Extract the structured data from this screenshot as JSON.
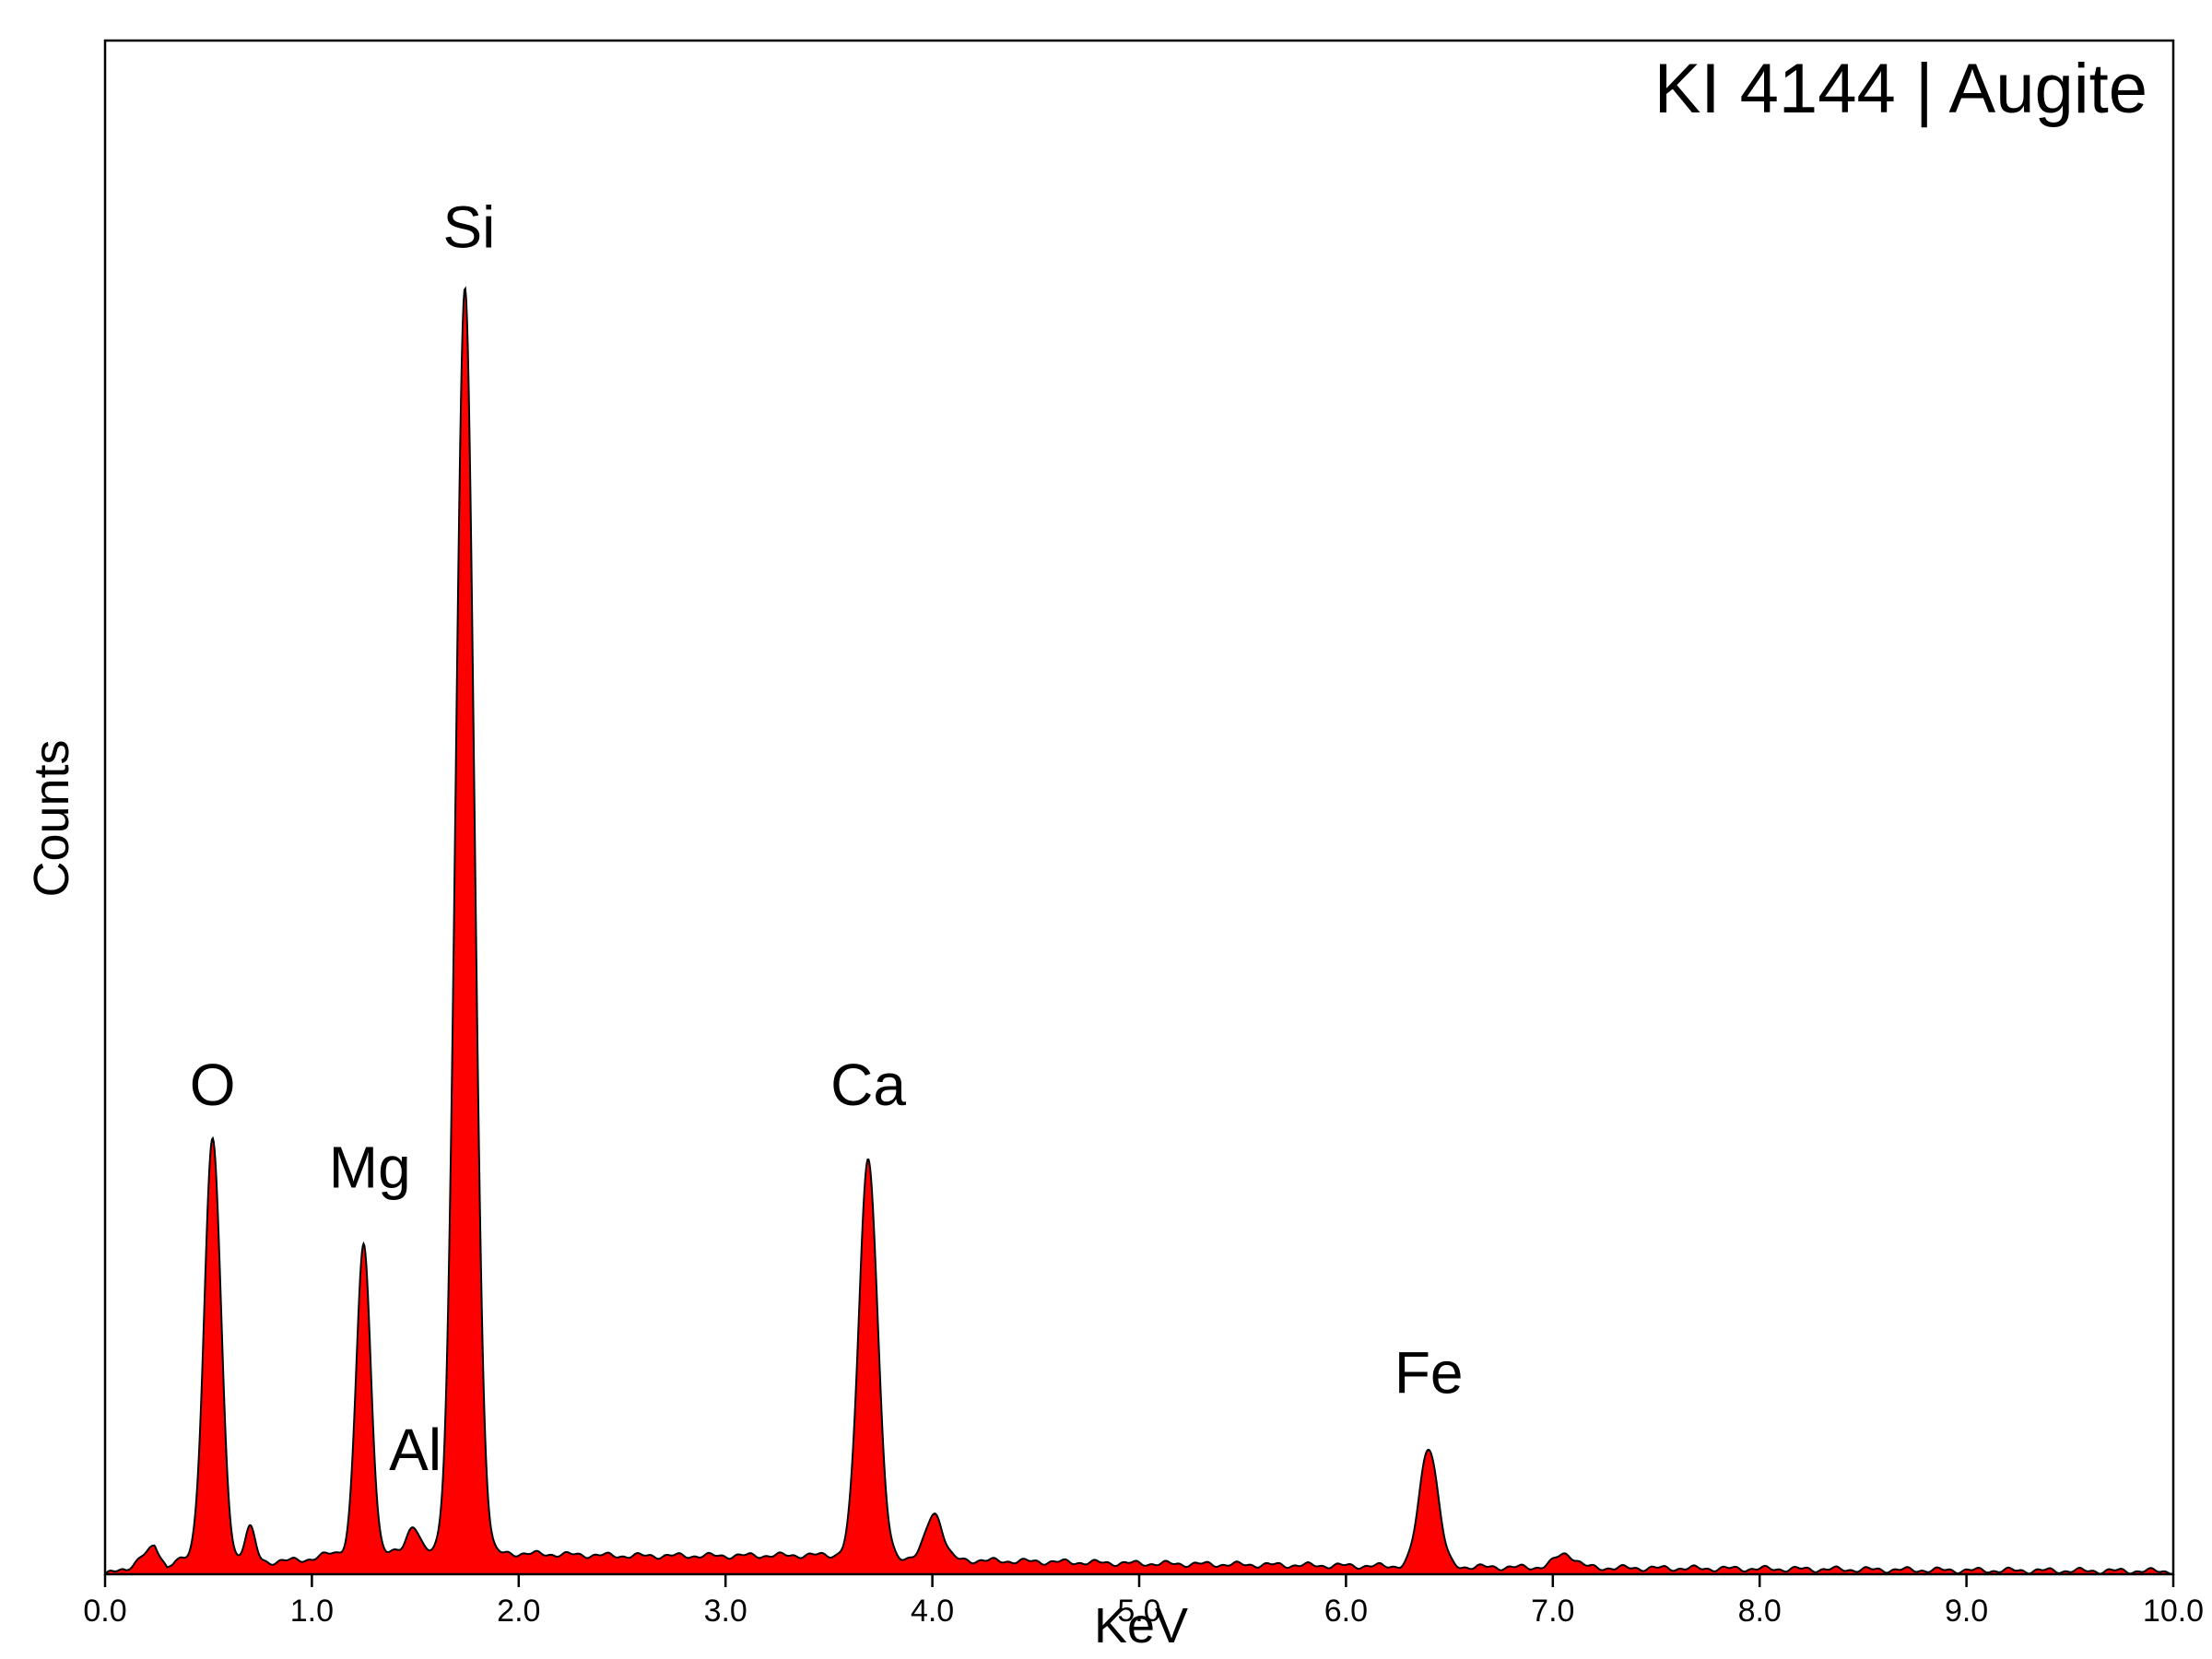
{
  "chart_data": {
    "type": "area",
    "title": "KI 4144 | Augite",
    "xlabel": "KeV",
    "ylabel": "Counts",
    "xlim": [
      0.0,
      10.0
    ],
    "ylim": [
      0,
      100
    ],
    "x_ticks": [
      "0.0",
      "1.0",
      "2.0",
      "3.0",
      "4.0",
      "5.0",
      "6.0",
      "7.0",
      "8.0",
      "9.0",
      "10.0"
    ],
    "y_ticks_shown": false,
    "grid": false,
    "legend": "none",
    "fill_color": "#ff0000",
    "line_color": "#000000",
    "background": [
      [
        0.0,
        0.0
      ],
      [
        0.1,
        0.3
      ],
      [
        0.18,
        1.2
      ],
      [
        0.24,
        1.8
      ],
      [
        0.3,
        0.5
      ],
      [
        0.34,
        0.9
      ],
      [
        0.6,
        0.9
      ],
      [
        0.8,
        0.8
      ],
      [
        1.0,
        1.0
      ],
      [
        1.1,
        1.4
      ],
      [
        1.5,
        1.4
      ],
      [
        2.0,
        1.35
      ],
      [
        2.5,
        1.2
      ],
      [
        3.0,
        1.2
      ],
      [
        3.5,
        1.25
      ],
      [
        4.2,
        0.9
      ],
      [
        5.0,
        0.7
      ],
      [
        6.0,
        0.55
      ],
      [
        6.8,
        0.45
      ],
      [
        8.0,
        0.35
      ],
      [
        9.0,
        0.25
      ],
      [
        10.0,
        0.2
      ]
    ],
    "peaks": [
      {
        "label": "O",
        "energy": 0.52,
        "height": 27.5,
        "width": 0.04,
        "label_x": 0.52,
        "label_y": 30.6
      },
      {
        "label": "",
        "energy": 0.7,
        "height": 2.2,
        "width": 0.025,
        "label_x": null,
        "label_y": null
      },
      {
        "label": "Mg",
        "energy": 1.25,
        "height": 20.0,
        "width": 0.035,
        "label_x": 1.28,
        "label_y": 25.2
      },
      {
        "label": "Al",
        "energy": 1.49,
        "height": 1.8,
        "width": 0.03,
        "label_x": 1.5,
        "label_y": 6.8
      },
      {
        "label": "Si",
        "energy": 1.74,
        "height": 82.3,
        "width": 0.045,
        "label_x": 1.76,
        "label_y": 86.5
      },
      {
        "label": "Ca",
        "energy": 3.69,
        "height": 26.0,
        "width": 0.045,
        "label_x": 3.69,
        "label_y": 30.6
      },
      {
        "label": "",
        "energy": 4.01,
        "height": 3.0,
        "width": 0.04,
        "label_x": null,
        "label_y": null
      },
      {
        "label": "Fe",
        "energy": 6.4,
        "height": 7.8,
        "width": 0.045,
        "label_x": 6.4,
        "label_y": 11.8
      },
      {
        "label": "",
        "energy": 7.06,
        "height": 0.9,
        "width": 0.05,
        "label_x": null,
        "label_y": null
      }
    ]
  }
}
